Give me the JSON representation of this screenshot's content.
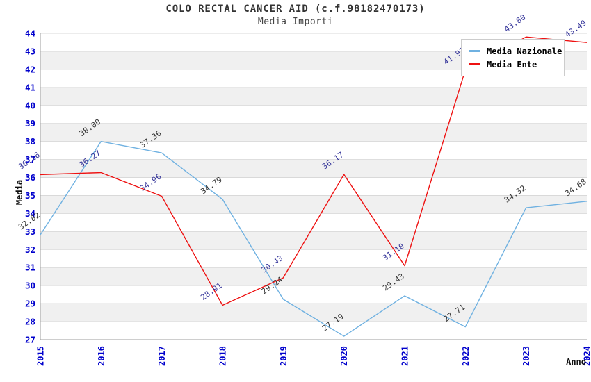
{
  "title": "COLO RECTAL CANCER AID (c.f.98182470173)",
  "subtitle": "Media Importi",
  "colors": {
    "background": "#ffffff",
    "band_fill": "#f0f0f0",
    "grid_line": "#d9d9d9",
    "axis_line": "#9e9e9e",
    "tick_label": "#0000cc",
    "title_text": "#333333",
    "subtitle_text": "#444444",
    "nazionale_line": "#6fb1e1",
    "ente_line": "#ee1111",
    "nazionale_value_label": "#333333",
    "ente_value_label": "#333399"
  },
  "chart_data": {
    "type": "line",
    "categories": [
      "2015",
      "2016",
      "2017",
      "2018",
      "2019",
      "2020",
      "2021",
      "2022",
      "2023",
      "2024"
    ],
    "xlabel": "Anno",
    "ylabel": "Media",
    "ylim": [
      27,
      44
    ],
    "ytick_step": 1,
    "grid": true,
    "alternating_bands": true,
    "legend_position": "top-right",
    "value_labels": "shown, rotated -35deg, 2 decimals",
    "series": [
      {
        "name": "Media Nazionale",
        "color": "#6fb1e1",
        "label_color": "#333333",
        "values": [
          32.82,
          38.0,
          37.36,
          34.79,
          29.24,
          27.19,
          29.43,
          27.71,
          34.32,
          34.68
        ]
      },
      {
        "name": "Media Ente",
        "color": "#ee1111",
        "label_color": "#333399",
        "values": [
          36.16,
          36.27,
          34.96,
          28.91,
          30.43,
          36.17,
          31.1,
          41.97,
          43.8,
          43.49
        ]
      }
    ]
  }
}
